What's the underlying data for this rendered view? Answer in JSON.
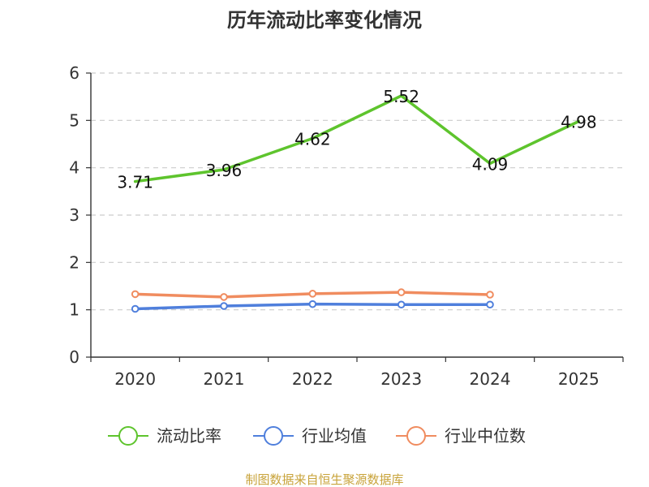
{
  "chart_data": {
    "type": "line",
    "title": "历年流动比率变化情况",
    "categories": [
      "2020",
      "2021",
      "2022",
      "2023",
      "2024",
      "2025"
    ],
    "ylim": [
      0,
      6
    ],
    "yticks": [
      0,
      1,
      2,
      3,
      4,
      5,
      6
    ],
    "grid": true,
    "legend_position": "bottom",
    "series": [
      {
        "name": "流动比率",
        "color": "#5ec42d",
        "values": [
          3.71,
          3.96,
          4.62,
          5.52,
          4.09,
          4.98
        ],
        "labels": [
          "3.71",
          "3.96",
          "4.62",
          "5.52",
          "4.09",
          "4.98"
        ],
        "show_labels": true,
        "show_markers": false
      },
      {
        "name": "行业均值",
        "color": "#4f7fdc",
        "values": [
          1.02,
          1.08,
          1.12,
          1.11,
          1.11,
          null
        ],
        "show_labels": false,
        "show_markers": true
      },
      {
        "name": "行业中位数",
        "color": "#f08c5f",
        "values": [
          1.33,
          1.27,
          1.34,
          1.37,
          1.32,
          null
        ],
        "show_labels": false,
        "show_markers": true
      }
    ]
  },
  "source_text": "制图数据来自恒生聚源数据库"
}
